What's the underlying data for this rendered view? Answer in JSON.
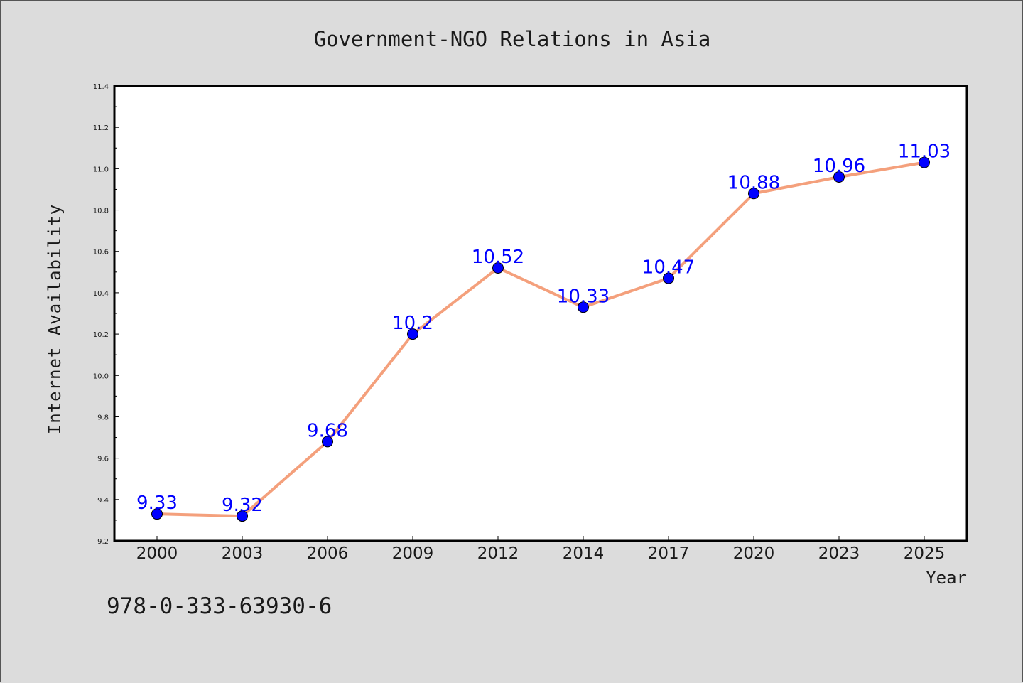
{
  "chart_data": {
    "type": "line",
    "title": "Government-NGO Relations in Asia",
    "xlabel": "Year",
    "ylabel": "Internet Availability",
    "categories": [
      "2000",
      "2003",
      "2006",
      "2009",
      "2012",
      "2014",
      "2017",
      "2020",
      "2023",
      "2025"
    ],
    "series": [
      {
        "values": [
          9.33,
          9.32,
          9.68,
          10.2,
          10.52,
          10.33,
          10.47,
          10.88,
          10.96,
          11.03
        ],
        "data_labels": [
          "9.33",
          "9.32",
          "9.68",
          "10.2",
          "10.52",
          "10.33",
          "10.47",
          "10.88",
          "10.96",
          "11.03"
        ],
        "line_color": "#f4a07c",
        "marker_color": "#0000ff",
        "label_color": "#0000ff"
      }
    ],
    "ylim": [
      9.2,
      11.4
    ],
    "yticks": [
      "9.2",
      "9.4",
      "9.6",
      "9.8",
      "10.0",
      "10.2",
      "10.4",
      "10.6",
      "10.8",
      "11.0",
      "11.2",
      "11.4"
    ],
    "grid": false,
    "legend": "none"
  },
  "footer": {
    "isbn": "978-0-333-63930-6"
  }
}
